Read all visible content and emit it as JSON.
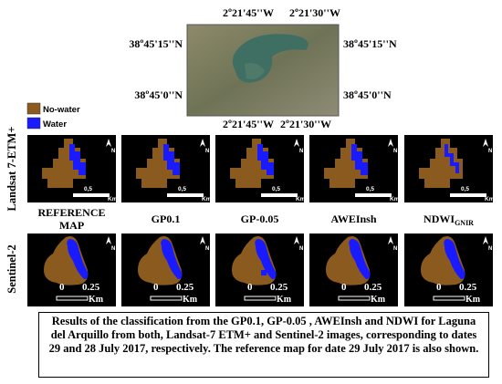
{
  "coordinates": {
    "top": [
      "2º21'45''W",
      "2º21'30''W"
    ],
    "left": [
      "38º45'15''N",
      "38º45'0''N"
    ],
    "right": [
      "38º45'15''N",
      "38º45'0''N"
    ]
  },
  "legend": [
    {
      "label": "No-water",
      "color": "#8b5a1e"
    },
    {
      "label": "Water",
      "color": "#1a1aff"
    }
  ],
  "rows": [
    "Landsat 7-ETM+",
    "Sentinel-2"
  ],
  "columns": [
    [
      "REFERENCE",
      "MAP"
    ],
    [
      "GP0.1"
    ],
    [
      "GP-0.05"
    ],
    [
      "AWEInsh"
    ],
    [
      "NDWI",
      "GNIR"
    ]
  ],
  "north": "N",
  "scale_landsat": [
    "0,5",
    "Km"
  ],
  "scale_sentinel": [
    "0",
    "0.25",
    "Km"
  ],
  "caption": "Results of the classification from the GP0.1, GP-0.05 , AWEInsh and NDWI for Laguna del Arquillo from both, Landsat-7 ETM+ and Sentinel-2 images, corresponding to dates 29 and 28 July 2017, respectively. The reference map for date 29 July 2017 is also shown."
}
